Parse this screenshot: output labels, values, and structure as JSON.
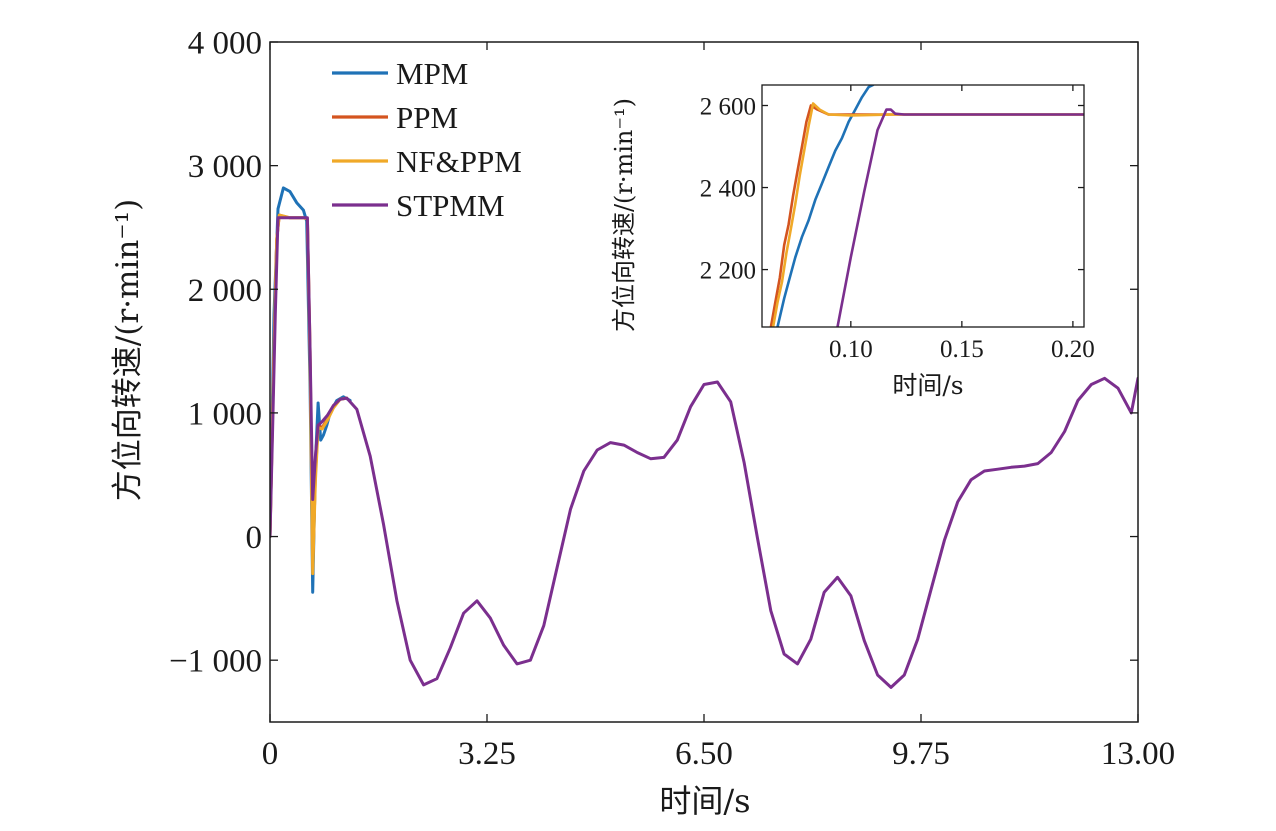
{
  "chart_data": {
    "type": "line",
    "main": {
      "xlabel": "时间/s",
      "ylabel": "方位向转速/(r·min⁻¹)",
      "xlim": [
        0,
        13.0
      ],
      "ylim": [
        -1500,
        4000
      ],
      "xticks": [
        0,
        3.25,
        6.5,
        9.75,
        13.0
      ],
      "xtick_labels": [
        "0",
        "3.25",
        "6.50",
        "9.75",
        "13.00"
      ],
      "yticks": [
        -1000,
        0,
        1000,
        2000,
        3000,
        4000
      ],
      "ytick_labels": [
        "−1 000",
        "0",
        "1 000",
        "2 000",
        "3 000",
        "4 000"
      ],
      "grid": false,
      "legend": "top-left",
      "series": [
        {
          "name": "MPM",
          "color": "#1f72b6",
          "x": [
            0,
            0.06,
            0.12,
            0.2,
            0.3,
            0.4,
            0.5,
            0.55,
            0.6,
            0.64,
            0.68,
            0.72,
            0.76,
            0.8,
            0.85,
            0.9,
            1.0,
            1.1,
            1.2
          ],
          "y": [
            0,
            1800,
            2650,
            2820,
            2790,
            2700,
            2640,
            2550,
            1200,
            -450,
            600,
            1080,
            780,
            820,
            900,
            1000,
            1100,
            1130,
            1100
          ]
        },
        {
          "name": "PPM",
          "color": "#d4541f",
          "x": [
            0,
            0.06,
            0.1,
            0.14,
            0.3,
            0.5,
            0.56,
            0.6,
            0.64,
            0.68,
            0.72,
            0.78,
            0.86,
            0.95,
            1.05,
            1.15
          ],
          "y": [
            0,
            1500,
            2400,
            2600,
            2578,
            2578,
            2570,
            1500,
            -250,
            500,
            900,
            880,
            950,
            1050,
            1110,
            1120
          ]
        },
        {
          "name": "NF&PPM",
          "color": "#f0a928",
          "x": [
            0,
            0.06,
            0.1,
            0.14,
            0.3,
            0.5,
            0.56,
            0.6,
            0.64,
            0.68,
            0.72,
            0.78,
            0.86,
            0.95,
            1.05,
            1.15
          ],
          "y": [
            0,
            1500,
            2400,
            2600,
            2578,
            2578,
            2570,
            1400,
            -300,
            450,
            880,
            870,
            940,
            1040,
            1110,
            1120
          ]
        },
        {
          "name": "STPMM",
          "color": "#7b2f8e",
          "x": [
            0,
            0.04,
            0.08,
            0.12,
            0.3,
            0.5,
            0.56,
            0.6,
            0.64,
            0.68,
            0.72,
            0.78,
            0.86,
            0.95,
            1.05,
            1.15,
            1.3,
            1.5,
            1.7,
            1.9,
            2.1,
            2.3,
            2.5,
            2.7,
            2.9,
            3.1,
            3.3,
            3.5,
            3.7,
            3.9,
            4.1,
            4.3,
            4.5,
            4.7,
            4.9,
            5.1,
            5.3,
            5.5,
            5.7,
            5.9,
            6.1,
            6.3,
            6.5,
            6.7,
            6.9,
            7.1,
            7.3,
            7.5,
            7.7,
            7.9,
            8.1,
            8.3,
            8.5,
            8.7,
            8.9,
            9.1,
            9.3,
            9.5,
            9.7,
            9.9,
            10.1,
            10.3,
            10.5,
            10.7,
            10.9,
            11.1,
            11.3,
            11.5,
            11.7,
            11.9,
            12.1,
            12.3,
            12.5,
            12.7,
            12.9,
            13.0
          ],
          "y": [
            0,
            900,
            1800,
            2578,
            2578,
            2578,
            2578,
            1500,
            300,
            650,
            900,
            930,
            980,
            1060,
            1110,
            1120,
            1030,
            650,
            100,
            -520,
            -1000,
            -1200,
            -1150,
            -900,
            -620,
            -520,
            -660,
            -880,
            -1030,
            -1000,
            -720,
            -250,
            220,
            530,
            700,
            760,
            740,
            680,
            630,
            640,
            780,
            1050,
            1230,
            1250,
            1090,
            600,
            -10,
            -600,
            -950,
            -1030,
            -830,
            -450,
            -330,
            -480,
            -840,
            -1120,
            -1220,
            -1120,
            -830,
            -430,
            -30,
            280,
            460,
            530,
            545,
            560,
            570,
            590,
            680,
            850,
            1100,
            1230,
            1280,
            1200,
            1000,
            1280
          ]
        }
      ]
    },
    "inset": {
      "xlabel": "时间/s",
      "ylabel": "方位向转速/(r·min⁻¹)",
      "xlim": [
        0.06,
        0.205
      ],
      "ylim": [
        2060,
        2650
      ],
      "xticks": [
        0.1,
        0.15,
        0.2
      ],
      "xtick_labels": [
        "0.10",
        "0.15",
        "0.20"
      ],
      "yticks": [
        2200,
        2400,
        2600
      ],
      "ytick_labels": [
        "2 200",
        "2 400",
        "2 600"
      ],
      "series": [
        {
          "name": "MPM",
          "color": "#1f72b6",
          "x": [
            0.067,
            0.07,
            0.072,
            0.075,
            0.078,
            0.081,
            0.084,
            0.087,
            0.09,
            0.093,
            0.096,
            0.099,
            0.102,
            0.105,
            0.108,
            0.11
          ],
          "y": [
            2060,
            2130,
            2170,
            2230,
            2280,
            2320,
            2370,
            2410,
            2450,
            2490,
            2520,
            2560,
            2590,
            2620,
            2645,
            2650
          ]
        },
        {
          "name": "PPM",
          "color": "#d4541f",
          "x": [
            0.064,
            0.066,
            0.068,
            0.07,
            0.072,
            0.074,
            0.076,
            0.078,
            0.08,
            0.082,
            0.085,
            0.09,
            0.1,
            0.12,
            0.205
          ],
          "y": [
            2060,
            2120,
            2180,
            2260,
            2310,
            2380,
            2440,
            2500,
            2560,
            2600,
            2590,
            2578,
            2578,
            2578,
            2578
          ]
        },
        {
          "name": "NF&PPM",
          "color": "#f0a928",
          "x": [
            0.065,
            0.067,
            0.069,
            0.071,
            0.073,
            0.075,
            0.077,
            0.079,
            0.081,
            0.083,
            0.086,
            0.09,
            0.1,
            0.12,
            0.205
          ],
          "y": [
            2060,
            2120,
            2170,
            2240,
            2300,
            2360,
            2430,
            2490,
            2550,
            2605,
            2590,
            2578,
            2576,
            2578,
            2578
          ]
        },
        {
          "name": "STPMM",
          "color": "#7b2f8e",
          "x": [
            0.094,
            0.1,
            0.106,
            0.112,
            0.116,
            0.118,
            0.12,
            0.124,
            0.13,
            0.16,
            0.205
          ],
          "y": [
            2060,
            2230,
            2390,
            2540,
            2590,
            2590,
            2580,
            2578,
            2578,
            2578,
            2578
          ]
        }
      ]
    }
  }
}
